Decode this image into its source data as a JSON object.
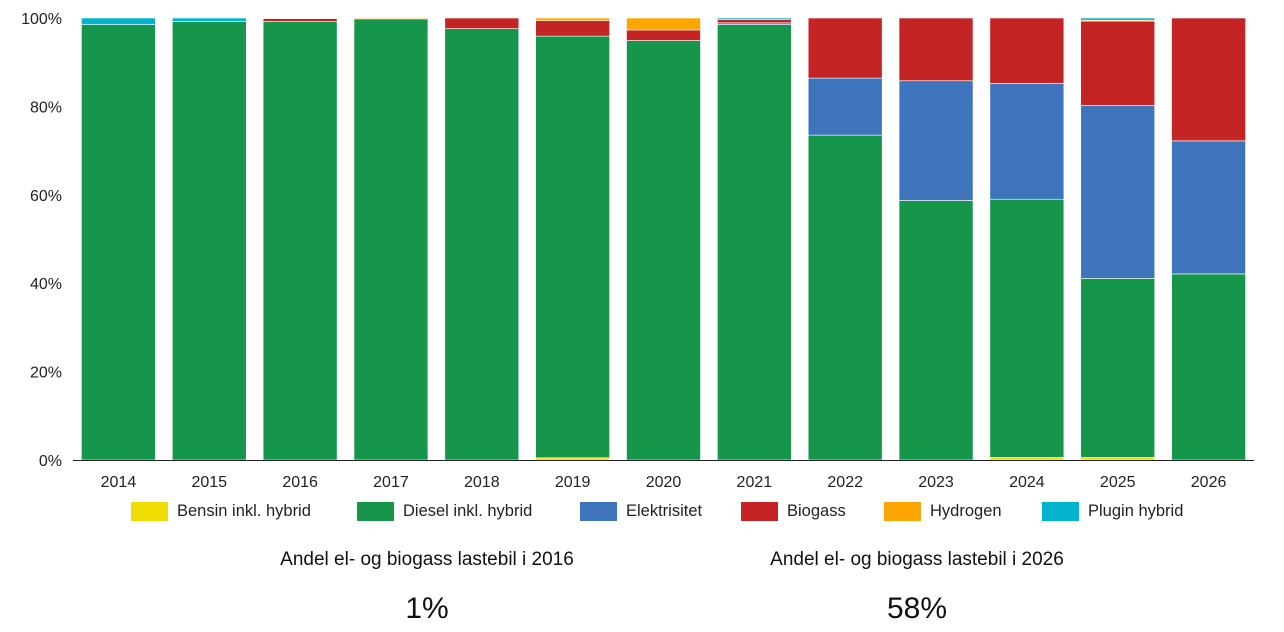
{
  "chart_data": {
    "type": "bar",
    "stacked": true,
    "normalized": true,
    "categories": [
      "2014",
      "2015",
      "2016",
      "2017",
      "2018",
      "2019",
      "2020",
      "2021",
      "2022",
      "2023",
      "2024",
      "2025",
      "2026"
    ],
    "y_ticks": [
      "0%",
      "20%",
      "40%",
      "60%",
      "80%",
      "100%"
    ],
    "ylim": [
      0,
      100
    ],
    "grid": false,
    "legend_position": "bottom",
    "series": [
      {
        "name": "Bensin inkl. hybrid",
        "color": "#f0dc00",
        "values": [
          0,
          0,
          0,
          0,
          0,
          0.5,
          0,
          0,
          0,
          0,
          0.6,
          0.6,
          0
        ]
      },
      {
        "name": "Diesel inkl. hybrid",
        "color": "#16964a",
        "values": [
          98.5,
          99.2,
          99.2,
          99.8,
          97.6,
          95.4,
          94.9,
          98.5,
          73.5,
          58.7,
          58.4,
          40.5,
          42.1
        ]
      },
      {
        "name": "Elektrisitet",
        "color": "#3e74bc",
        "values": [
          0,
          0,
          0,
          0,
          0,
          0,
          0,
          0.4,
          12.9,
          27.1,
          26.2,
          39.1,
          30.1
        ]
      },
      {
        "name": "Biogass",
        "color": "#c52424",
        "values": [
          0,
          0,
          0.7,
          0,
          2.4,
          3.5,
          2.4,
          0.8,
          13.6,
          14.2,
          14.8,
          19.1,
          27.8
        ]
      },
      {
        "name": "Hydrogen",
        "color": "#ffa500",
        "values": [
          0,
          0,
          0,
          0.2,
          0,
          0.6,
          2.7,
          0,
          0,
          0,
          0,
          0.2,
          0
        ]
      },
      {
        "name": "Plugin hybrid",
        "color": "#00b4cc",
        "values": [
          1.5,
          0.8,
          0.1,
          0,
          0,
          0,
          0,
          0.3,
          0,
          0,
          0,
          0.5,
          0
        ]
      }
    ]
  },
  "kpis": [
    {
      "label": "Andel el- og biogass lastebil i 2016",
      "value": "1%"
    },
    {
      "label": "Andel el- og biogass lastebil i 2026",
      "value": "58%"
    }
  ]
}
